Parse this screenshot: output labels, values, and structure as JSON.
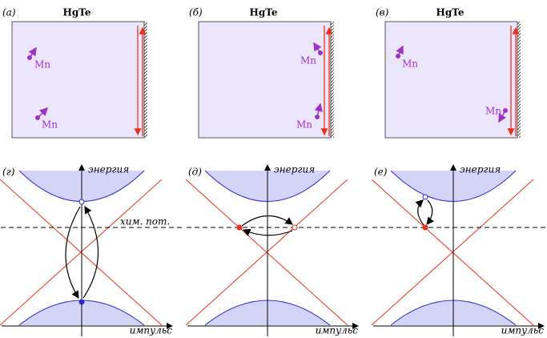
{
  "top_panels": [
    {
      "label": "(а)",
      "title": "HgTe",
      "mn": [
        "Mn",
        "Mn"
      ]
    },
    {
      "label": "(б)",
      "title": "HgTe",
      "mn": [
        "Mn",
        "Mn"
      ]
    },
    {
      "label": "(в)",
      "title": "HgTe",
      "mn": [
        "Mn",
        "Mn"
      ]
    }
  ],
  "bottom_panels": [
    {
      "label": "(г)",
      "y_axis": "энергия",
      "x_axis": "импульс",
      "annotation": "хим. пот."
    },
    {
      "label": "(д)",
      "y_axis": "энергия",
      "x_axis": "импульс"
    },
    {
      "label": "(е)",
      "y_axis": "энергия",
      "x_axis": "импульс"
    }
  ]
}
